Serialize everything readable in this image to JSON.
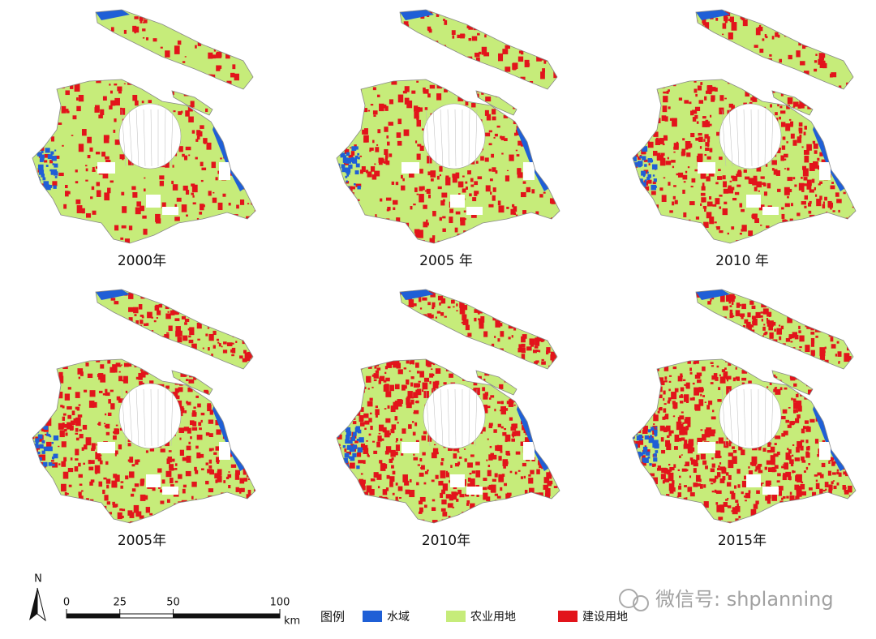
{
  "panels": [
    {
      "label": "2000年"
    },
    {
      "label": "2005 年"
    },
    {
      "label": "2010 年"
    },
    {
      "label": "2005年"
    },
    {
      "label": "2010年"
    },
    {
      "label": "2015年"
    }
  ],
  "scale_bar": {
    "north": "N",
    "ticks": [
      0,
      25,
      50,
      100
    ],
    "unit": "km"
  },
  "legend": {
    "title": "图例",
    "items": [
      {
        "label": "水域",
        "color": "#1f5fd6"
      },
      {
        "label": "农业用地",
        "color": "#c6ec7a"
      },
      {
        "label": "建设用地",
        "color": "#e2141b"
      }
    ]
  },
  "watermark": "微信号: shplanning"
}
